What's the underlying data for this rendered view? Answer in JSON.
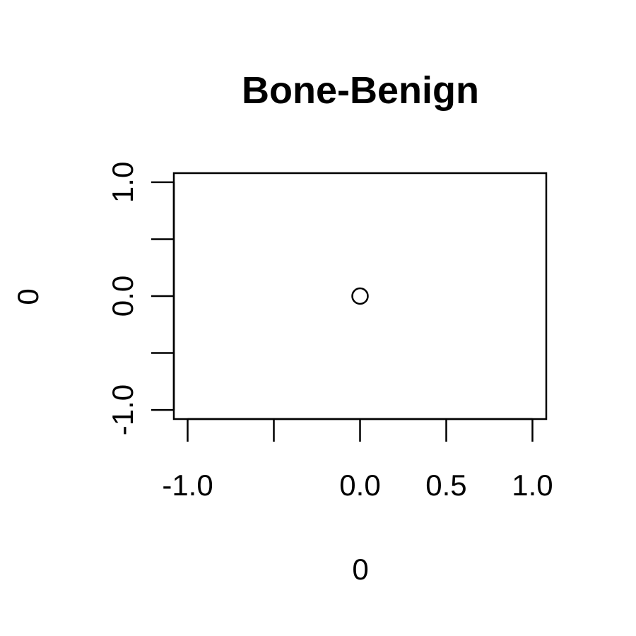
{
  "chart_data": {
    "type": "scatter",
    "title": "Bone-Benign",
    "xlabel": "0",
    "ylabel": "0",
    "xlim": [
      -1.08,
      1.08
    ],
    "ylim": [
      -1.08,
      1.08
    ],
    "x_ticks": [
      -1.0,
      -0.5,
      0.0,
      0.5,
      1.0
    ],
    "x_tick_labels": [
      "-1.0",
      "",
      "0.0",
      "0.5",
      "1.0"
    ],
    "y_ticks": [
      -1.0,
      -0.5,
      0.0,
      0.5,
      1.0
    ],
    "y_tick_labels": [
      "-1.0",
      "",
      "0.0",
      "",
      "1.0"
    ],
    "points": [
      {
        "x": 0,
        "y": 0
      }
    ],
    "marker": "open-circle",
    "grid": false,
    "colors": {
      "ink": "#000000",
      "background": "#ffffff"
    }
  }
}
